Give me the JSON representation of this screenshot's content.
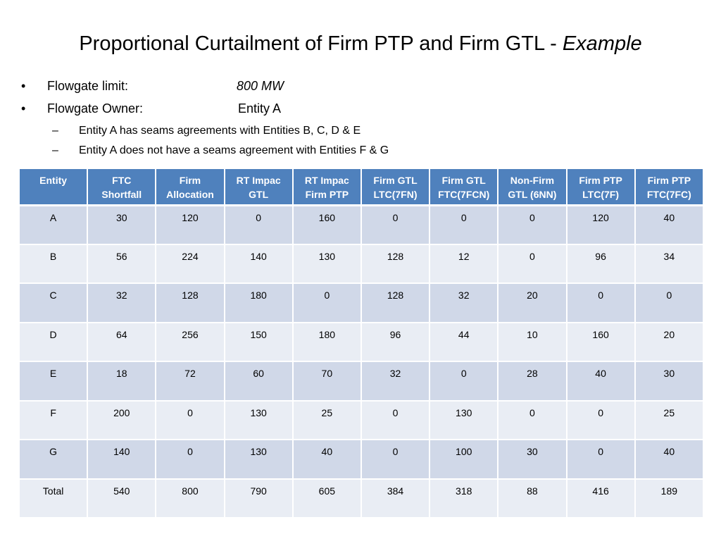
{
  "title": {
    "main": "Proportional Curtailment of Firm PTP and Firm GTL - ",
    "italic": "Example"
  },
  "bullets": [
    {
      "label": "Flowgate limit:",
      "value": "800 MW",
      "value_italic": true
    },
    {
      "label": "Flowgate Owner:",
      "value": "Entity A",
      "value_italic": false
    }
  ],
  "sub_bullets": [
    "Entity A has seams agreements with Entities B, C, D & E",
    "Entity A does not have a seams agreement with Entities F & G"
  ],
  "table": {
    "headers": [
      [
        "Entity"
      ],
      [
        "FTC",
        "Shortfall"
      ],
      [
        "Firm",
        "Allocation"
      ],
      [
        "RT Impac",
        "GTL"
      ],
      [
        "RT Impac",
        "Firm PTP"
      ],
      [
        "Firm GTL",
        "LTC(7FN)"
      ],
      [
        "Firm GTL",
        "FTC(7FCN)"
      ],
      [
        "Non-Firm",
        "GTL (6NN)"
      ],
      [
        "Firm PTP",
        "LTC(7F)"
      ],
      [
        "Firm PTP",
        "FTC(7FC)"
      ]
    ],
    "rows": [
      [
        "A",
        "30",
        "120",
        "0",
        "160",
        "0",
        "0",
        "0",
        "120",
        "40"
      ],
      [
        "B",
        "56",
        "224",
        "140",
        "130",
        "128",
        "12",
        "0",
        "96",
        "34"
      ],
      [
        "C",
        "32",
        "128",
        "180",
        "0",
        "128",
        "32",
        "20",
        "0",
        "0"
      ],
      [
        "D",
        "64",
        "256",
        "150",
        "180",
        "96",
        "44",
        "10",
        "160",
        "20"
      ],
      [
        "E",
        "18",
        "72",
        "60",
        "70",
        "32",
        "0",
        "28",
        "40",
        "30"
      ],
      [
        "F",
        "200",
        "0",
        "130",
        "25",
        "0",
        "130",
        "0",
        "0",
        "25"
      ],
      [
        "G",
        "140",
        "0",
        "130",
        "40",
        "0",
        "100",
        "30",
        "0",
        "40"
      ],
      [
        "Total",
        "540",
        "800",
        "790",
        "605",
        "384",
        "318",
        "88",
        "416",
        "189"
      ]
    ]
  },
  "colors": {
    "header_bg": "#4f81bd",
    "row_odd": "#d0d8e8",
    "row_even": "#e9edf4"
  }
}
